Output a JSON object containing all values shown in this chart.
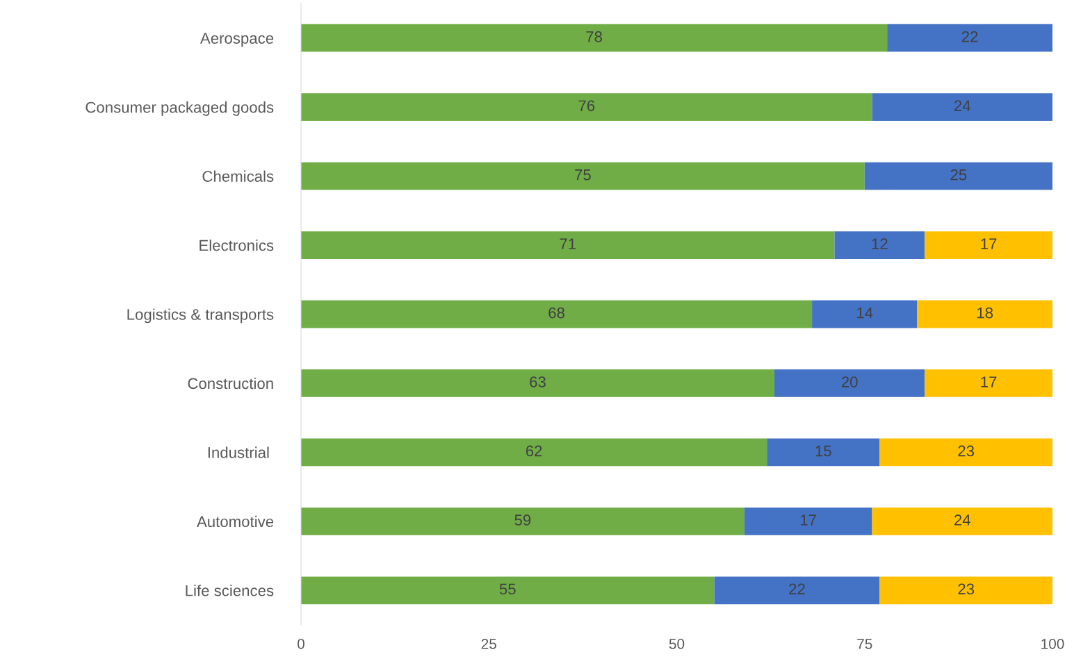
{
  "chart_data": {
    "type": "bar",
    "orientation": "horizontal",
    "stacked": true,
    "categories": [
      "Aerospace",
      "Consumer packaged goods",
      "Chemicals",
      "Electronics",
      "Logistics & transports",
      "Construction",
      "Industrial ",
      "Automotive",
      "Life sciences"
    ],
    "series": [
      {
        "color": "#70ad47",
        "values": [
          78,
          76,
          75,
          71,
          68,
          63,
          62,
          59,
          55
        ]
      },
      {
        "color": "#4472c4",
        "values": [
          22,
          24,
          25,
          12,
          14,
          20,
          15,
          17,
          22
        ]
      },
      {
        "color": "#ffc000",
        "values": [
          null,
          null,
          null,
          17,
          18,
          17,
          23,
          24,
          23
        ]
      }
    ],
    "xlim": [
      0,
      100
    ],
    "xticks": [
      0,
      25,
      50,
      75,
      100
    ],
    "grid": false,
    "legend": false,
    "data_labels": true
  }
}
